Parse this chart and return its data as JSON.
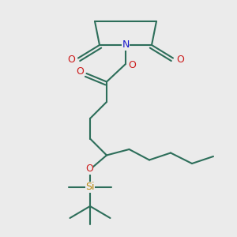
{
  "bg_color": "#ebebeb",
  "bond_color": "#2d6e5a",
  "N_color": "#1a1acc",
  "O_color": "#cc1a1a",
  "Si_color": "#b8860b",
  "line_width": 1.5,
  "figsize": [
    3.0,
    3.0
  ],
  "dpi": 100,
  "xlim": [
    0,
    10
  ],
  "ylim": [
    0,
    10
  ]
}
